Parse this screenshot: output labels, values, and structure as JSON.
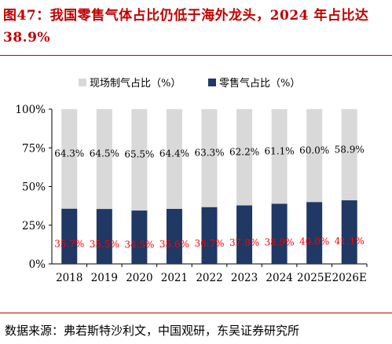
{
  "title": "图47：我国零售气体占比仍低于海外龙头，2024 年占比达 38.9%",
  "source": "数据来源：弗若斯特沙利文，中国观研，东吴证券研究所",
  "colors": {
    "title": "#c00000",
    "top_series": "#d9d9d9",
    "bottom_series": "#1f3864",
    "bottom_label": "#ff0000"
  },
  "chart_data": {
    "type": "bar",
    "stacked": true,
    "categories": [
      "2018",
      "2019",
      "2020",
      "2021",
      "2022",
      "2023",
      "2024",
      "2025E",
      "2026E"
    ],
    "series": [
      {
        "name": "零售气占比（%）",
        "values": [
          35.7,
          35.5,
          34.5,
          35.6,
          36.7,
          37.8,
          38.9,
          40.0,
          41.1
        ],
        "labels": [
          "35.7%",
          "35.5%",
          "34.5%",
          "35.6%",
          "36.7%",
          "37.8%",
          "38.9%",
          "40.0%",
          "41.1%"
        ]
      },
      {
        "name": "现场制气占比（%）",
        "values": [
          64.3,
          64.5,
          65.5,
          64.4,
          63.3,
          62.2,
          61.1,
          60.0,
          58.9
        ],
        "labels": [
          "64.3%",
          "64.5%",
          "65.5%",
          "64.4%",
          "63.3%",
          "62.2%",
          "61.1%",
          "60.0%",
          "58.9%"
        ]
      }
    ],
    "ylim": [
      0,
      100
    ],
    "yticks": [
      "0%",
      "25%",
      "50%",
      "75%",
      "100%"
    ],
    "legend": [
      "现场制气占比（%）",
      "零售气占比（%）"
    ],
    "legend_position": "top",
    "grid": false
  }
}
